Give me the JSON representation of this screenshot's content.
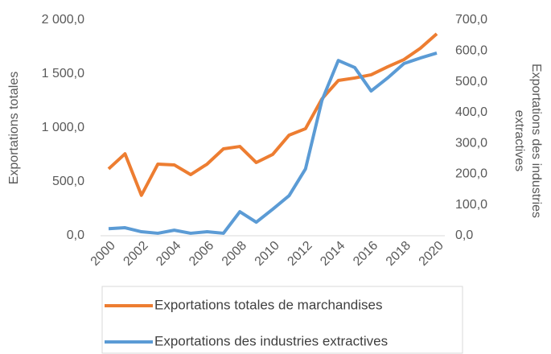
{
  "chart_data": {
    "type": "line",
    "y_label": "Exportations totales",
    "y2_label": [
      "Exportations des industries",
      "extractives"
    ],
    "x": [
      2000,
      2001,
      2002,
      2003,
      2004,
      2005,
      2006,
      2007,
      2008,
      2009,
      2010,
      2011,
      2012,
      2013,
      2014,
      2015,
      2016,
      2017,
      2018,
      2019,
      2020
    ],
    "xlim": [
      2000,
      2020
    ],
    "xticks": [
      2000,
      2002,
      2004,
      2006,
      2008,
      2010,
      2012,
      2014,
      2016,
      2018,
      2020
    ],
    "ylim": [
      0,
      2000
    ],
    "yticks": [
      {
        "value": 0,
        "label": "0,0"
      },
      {
        "value": 500,
        "label": "500,0"
      },
      {
        "value": 1000,
        "label": "1 000,0"
      },
      {
        "value": 1500,
        "label": "1 500,0"
      },
      {
        "value": 2000,
        "label": "2 000,0"
      }
    ],
    "y2lim": [
      0,
      700
    ],
    "y2ticks": [
      {
        "value": 0,
        "label": "0,0"
      },
      {
        "value": 100,
        "label": "100,0"
      },
      {
        "value": 200,
        "label": "200,0"
      },
      {
        "value": 300,
        "label": "300,0"
      },
      {
        "value": 400,
        "label": "400,0"
      },
      {
        "value": 500,
        "label": "500,0"
      },
      {
        "value": 600,
        "label": "600,0"
      },
      {
        "value": 700,
        "label": "700,0"
      }
    ],
    "grid": false,
    "legend": "bottom",
    "series": [
      {
        "name": "Exportations totales de marchandises",
        "color": "#ed7d31",
        "values": [
          620,
          760,
          375,
          664,
          657,
          567,
          664,
          806,
          828,
          679,
          754,
          933,
          993,
          1269,
          1440,
          1463,
          1493,
          1567,
          1634,
          1739,
          1873
        ]
      },
      {
        "name": "Exportations des industries extractives",
        "color": "#5b9bd5",
        "axis": "y2",
        "values": [
          23,
          26,
          13,
          8,
          18,
          8,
          13,
          8,
          78,
          44,
          86,
          130,
          217,
          439,
          569,
          546,
          470,
          512,
          559,
          577,
          593
        ]
      }
    ]
  }
}
